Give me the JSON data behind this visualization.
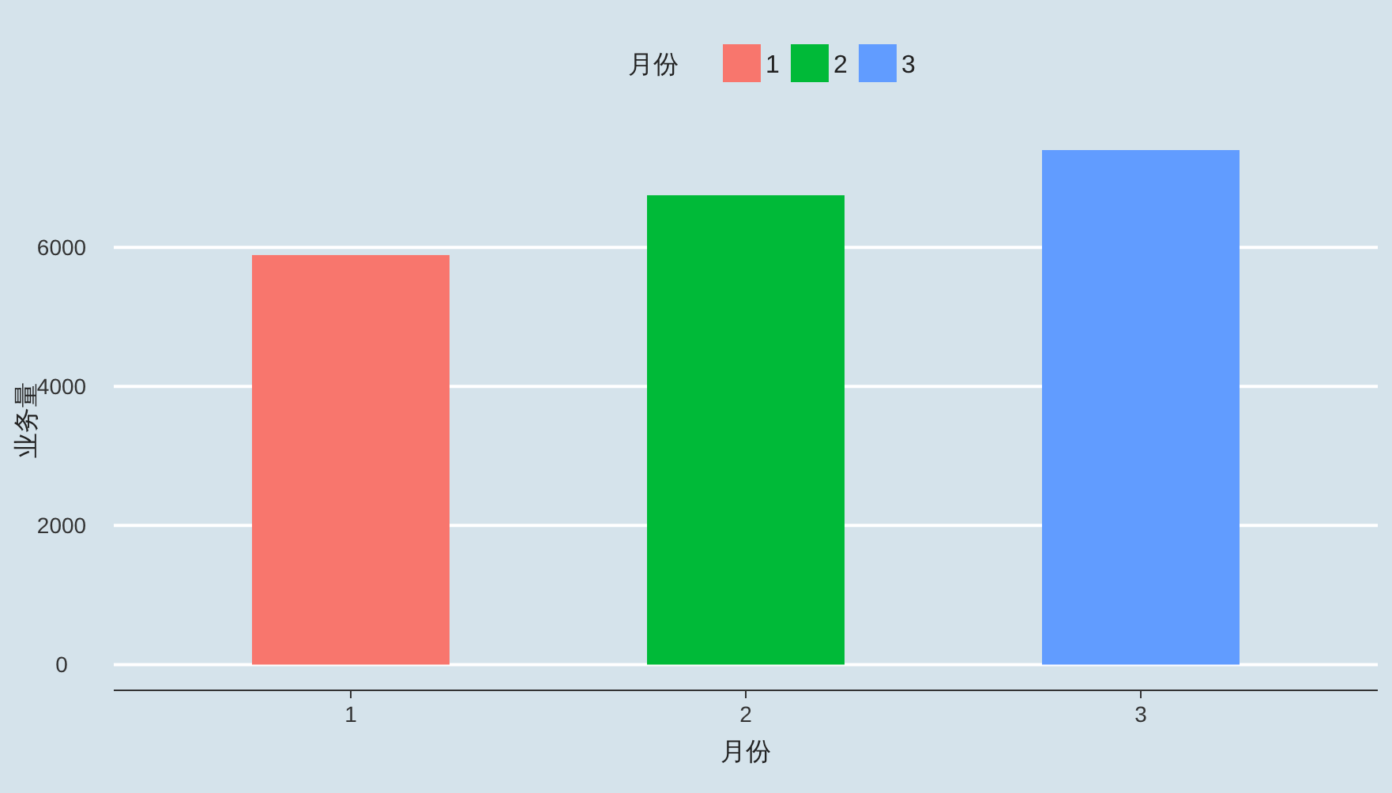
{
  "chart_data": {
    "type": "bar",
    "xlabel": "月份",
    "ylabel": "业务量",
    "legend_title": "月份",
    "categories": [
      "1",
      "2",
      "3"
    ],
    "series": [
      {
        "name": "1",
        "color": "#f8766d",
        "values": [
          5890,
          null,
          null
        ]
      },
      {
        "name": "2",
        "color": "#00ba38",
        "values": [
          null,
          6750,
          null
        ]
      },
      {
        "name": "3",
        "color": "#619cff",
        "values": [
          null,
          null,
          7400
        ]
      }
    ],
    "ylim": [
      -370,
      7400
    ],
    "yticks": [
      0,
      2000,
      4000,
      6000
    ],
    "grid": "y",
    "legend": "top"
  }
}
